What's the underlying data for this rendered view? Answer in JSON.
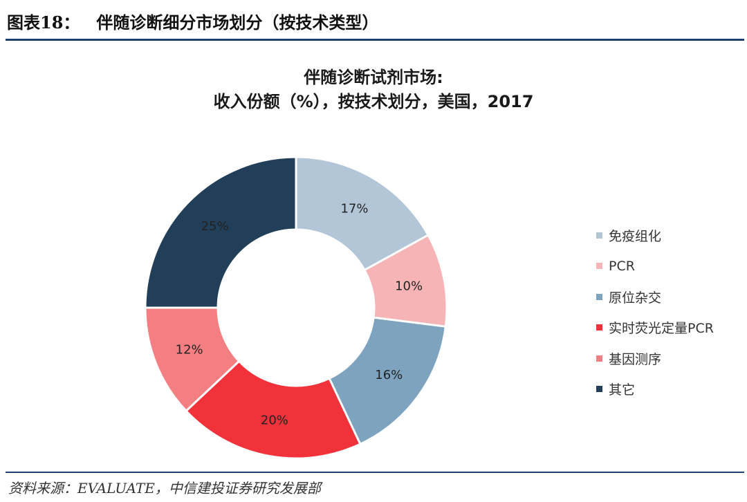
{
  "header": {
    "figure_label": "图表18：",
    "figure_title": "伴随诊断细分市场划分（按技术类型）"
  },
  "colors": {
    "rule": "#1f3f6e"
  },
  "chart_data": {
    "type": "pie",
    "variant": "donut",
    "title_line1": "伴随诊断试剂市场:",
    "title_line2": "收入份额（%），按技术划分，美国，2017",
    "unit": "%",
    "slices": [
      {
        "label": "免疫组化",
        "value": 17,
        "display": "17%",
        "color": "#b3c6d8"
      },
      {
        "label": "PCR",
        "value": 10,
        "display": "10%",
        "color": "#f7b4b7"
      },
      {
        "label": "原位杂交",
        "value": 16,
        "display": "16%",
        "color": "#7ea3bf"
      },
      {
        "label": "实时荧光定量PCR",
        "value": 20,
        "display": "20%",
        "color": "#f2323a"
      },
      {
        "label": "基因测序",
        "value": 12,
        "display": "12%",
        "color": "#f47f82"
      },
      {
        "label": "其它",
        "value": 25,
        "display": "25%",
        "color": "#213f58"
      }
    ],
    "legend_position": "right"
  },
  "footer": {
    "source": "资料来源：EVALUATE，中信建投证券研究发展部"
  }
}
